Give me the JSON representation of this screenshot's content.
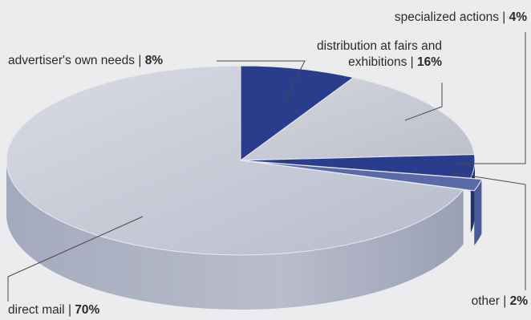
{
  "chart_data": {
    "type": "pie",
    "title": "",
    "categories": [
      "advertiser's own needs",
      "distribution at fairs and exhibitions",
      "specialized actions",
      "other",
      "direct mail"
    ],
    "values": [
      8,
      16,
      4,
      2,
      70
    ],
    "unit": "%",
    "labels": [
      {
        "name": "advertiser's own needs",
        "sep": " | ",
        "value": "8%"
      },
      {
        "name_line1": "distribution at fairs and",
        "name_line2": "exhibitions",
        "sep": " | ",
        "value": "16%"
      },
      {
        "name": "specialized actions",
        "sep": " | ",
        "value": "4%"
      },
      {
        "name": "other",
        "sep": " | ",
        "value": "2%"
      },
      {
        "name": "direct mail",
        "sep": " | ",
        "value": "70%"
      }
    ],
    "colors": [
      "#2a3d8c",
      "#c9ccd6",
      "#2a3d8c",
      "#5a6aa8",
      "#c3c7d3"
    ],
    "style": "3d-exploded",
    "legend": "none"
  }
}
